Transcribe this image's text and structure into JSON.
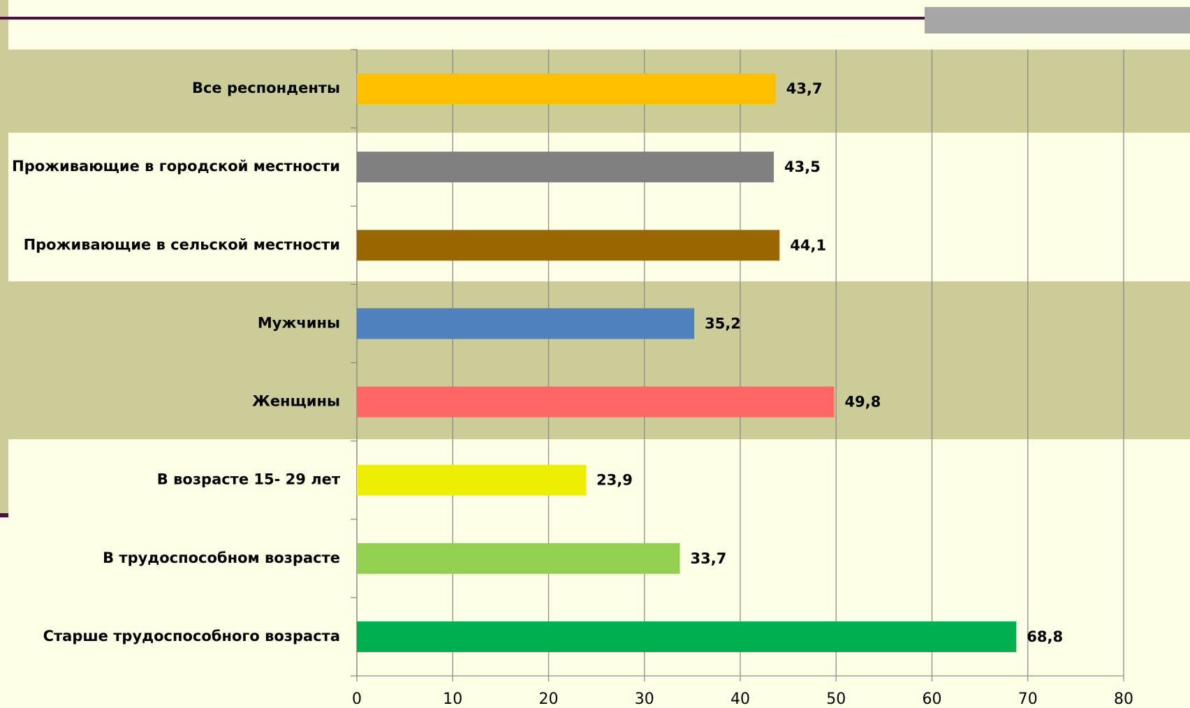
{
  "chart_data": {
    "type": "barh",
    "categories": [
      "Все респонденты",
      "Проживающие в городской местности",
      "Проживающие в сельской местности",
      "Мужчины",
      "Женщины",
      "В возрасте 15- 29 лет",
      "В трудоспособном возрасте",
      "Старше трудоспособного возраста"
    ],
    "values": [
      43.7,
      43.5,
      44.1,
      35.2,
      49.8,
      23.9,
      33.7,
      68.8
    ],
    "value_labels": [
      "43,7",
      "43,5",
      "44,1",
      "35,2",
      "49,8",
      "23,9",
      "33,7",
      "68,8"
    ],
    "colors": [
      "#ffc000",
      "#808080",
      "#996600",
      "#4f81bd",
      "#ff6666",
      "#eeee00",
      "#92d050",
      "#00b050"
    ],
    "xlim": [
      0,
      80
    ],
    "xticks": [
      0,
      10,
      20,
      30,
      40,
      50,
      60,
      70,
      80
    ],
    "grid": true
  }
}
